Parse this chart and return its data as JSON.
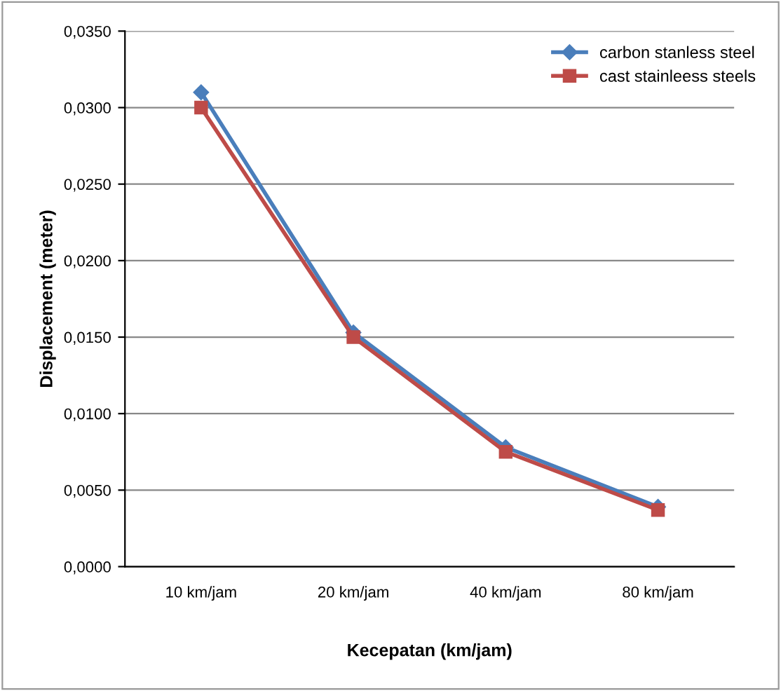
{
  "chart_data": {
    "type": "line",
    "xlabel": "Kecepatan (km/jam)",
    "ylabel": "Displacement (meter)",
    "categories": [
      "10 km/jam",
      "20 km/jam",
      "40 km/jam",
      "80 km/jam"
    ],
    "series": [
      {
        "name": "carbon stanless steel",
        "color": "#4a7ebb",
        "marker": "diamond",
        "values": [
          0.031,
          0.0153,
          0.0078,
          0.0039
        ]
      },
      {
        "name": "cast stainleess steels",
        "color": "#be4b48",
        "marker": "square",
        "values": [
          0.03,
          0.015,
          0.0075,
          0.0037
        ]
      }
    ],
    "ylim": [
      0,
      0.035
    ],
    "yticks": [
      {
        "value": 0,
        "label": "0,0000"
      },
      {
        "value": 0.005,
        "label": "0,0050"
      },
      {
        "value": 0.01,
        "label": "0,0100"
      },
      {
        "value": 0.015,
        "label": "0,0150"
      },
      {
        "value": 0.02,
        "label": "0,0200"
      },
      {
        "value": 0.025,
        "label": "0,0250"
      },
      {
        "value": 0.03,
        "label": "0,0300"
      },
      {
        "value": 0.035,
        "label": "0,0350"
      }
    ],
    "grid": "y",
    "legend": "top right",
    "line_style": "solid"
  }
}
